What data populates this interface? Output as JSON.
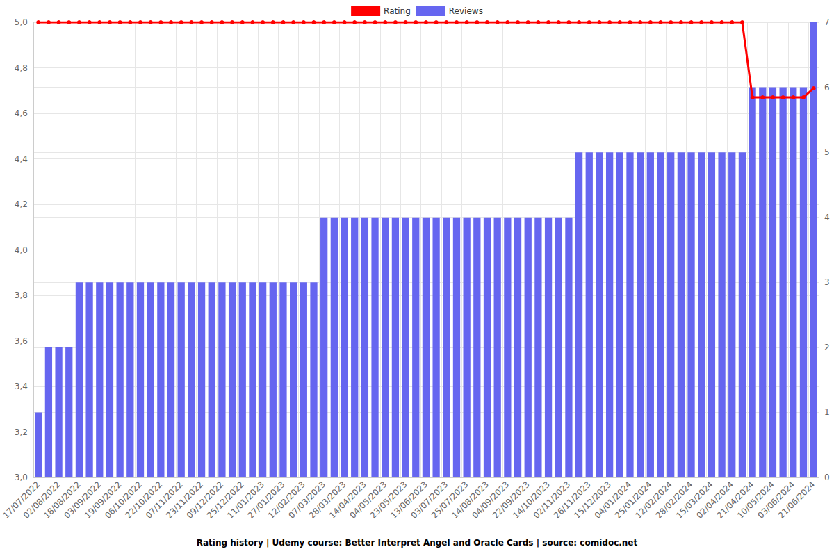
{
  "chart_data": {
    "type": "bar",
    "title": "Rating history | Udemy course: Better Interpret Angel and Oracle Cards | source: comidoc.net",
    "categories": [
      "17/07/2022",
      null,
      "02/08/2022",
      null,
      "18/08/2022",
      null,
      "03/09/2022",
      null,
      "19/09/2022",
      null,
      "06/10/2022",
      null,
      "22/10/2022",
      null,
      "07/11/2022",
      null,
      "23/11/2022",
      null,
      "09/12/2022",
      null,
      "25/12/2022",
      null,
      "11/01/2023",
      null,
      "27/01/2023",
      null,
      "12/02/2023",
      null,
      "07/03/2023",
      null,
      "28/03/2023",
      null,
      "14/04/2023",
      null,
      "04/05/2023",
      null,
      "23/05/2023",
      null,
      "13/06/2023",
      null,
      "03/07/2023",
      null,
      "25/07/2023",
      null,
      "14/08/2023",
      null,
      "04/09/2023",
      null,
      "22/09/2023",
      null,
      "14/10/2023",
      null,
      "02/11/2023",
      null,
      "26/11/2023",
      null,
      "15/12/2023",
      null,
      "04/01/2024",
      null,
      "25/01/2024",
      null,
      "12/02/2024",
      null,
      "28/02/2024",
      null,
      "15/03/2024",
      null,
      "02/04/2024",
      null,
      "21/04/2024",
      null,
      "10/05/2024",
      null,
      "03/06/2024",
      null,
      "21/06/2024"
    ],
    "series": [
      {
        "name": "Rating",
        "type": "line",
        "axis": "y",
        "color": "#ff0000",
        "marker": "circle",
        "values": [
          5,
          5,
          5,
          5,
          5,
          5,
          5,
          5,
          5,
          5,
          5,
          5,
          5,
          5,
          5,
          5,
          5,
          5,
          5,
          5,
          5,
          5,
          5,
          5,
          5,
          5,
          5,
          5,
          5,
          5,
          5,
          5,
          5,
          5,
          5,
          5,
          5,
          5,
          5,
          5,
          5,
          5,
          5,
          5,
          5,
          5,
          5,
          5,
          5,
          5,
          5,
          5,
          5,
          5,
          5,
          5,
          5,
          5,
          5,
          5,
          5,
          5,
          5,
          5,
          5,
          5,
          5,
          5,
          5,
          5,
          4.67,
          4.67,
          4.67,
          4.67,
          4.67,
          4.67,
          4.71
        ]
      },
      {
        "name": "Reviews",
        "type": "bar",
        "axis": "y2",
        "color": "#6666f0",
        "values": [
          1,
          2,
          2,
          2,
          3,
          3,
          3,
          3,
          3,
          3,
          3,
          3,
          3,
          3,
          3,
          3,
          3,
          3,
          3,
          3,
          3,
          3,
          3,
          3,
          3,
          3,
          3,
          3,
          4,
          4,
          4,
          4,
          4,
          4,
          4,
          4,
          4,
          4,
          4,
          4,
          4,
          4,
          4,
          4,
          4,
          4,
          4,
          4,
          4,
          4,
          4,
          4,
          4,
          5,
          5,
          5,
          5,
          5,
          5,
          5,
          5,
          5,
          5,
          5,
          5,
          5,
          5,
          5,
          5,
          5,
          6,
          6,
          6,
          6,
          6,
          6,
          7
        ]
      }
    ],
    "ylim": [
      3,
      5
    ],
    "yticks": [
      {
        "value": 3,
        "label": "3,0"
      },
      {
        "value": 3.2,
        "label": "3,2"
      },
      {
        "value": 3.4,
        "label": "3,4"
      },
      {
        "value": 3.6,
        "label": "3,6"
      },
      {
        "value": 3.8,
        "label": "3,8"
      },
      {
        "value": 4,
        "label": "4,0"
      },
      {
        "value": 4.2,
        "label": "4,2"
      },
      {
        "value": 4.4,
        "label": "4,4"
      },
      {
        "value": 4.6,
        "label": "4,6"
      },
      {
        "value": 4.8,
        "label": "4,8"
      },
      {
        "value": 5,
        "label": "5,0"
      }
    ],
    "y2lim": [
      0,
      7
    ],
    "y2ticks": [
      0,
      1,
      2,
      3,
      4,
      5,
      6,
      7
    ],
    "grid": true,
    "legend": "top"
  }
}
